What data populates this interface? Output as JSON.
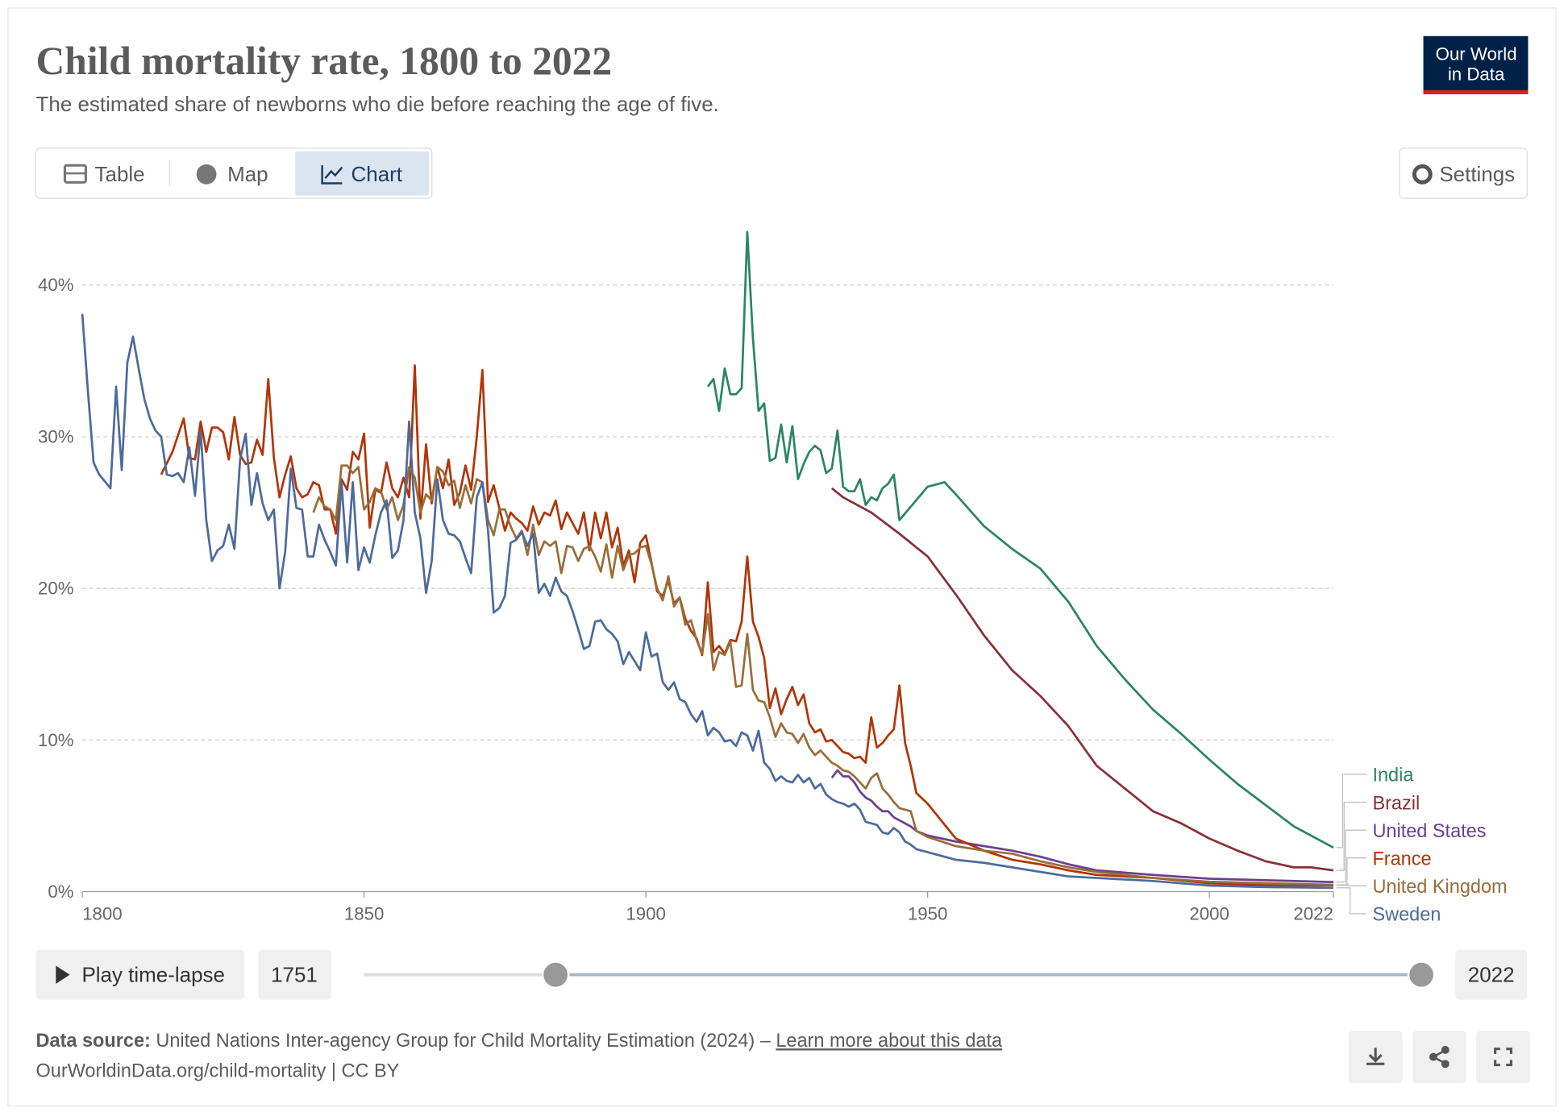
{
  "header": {
    "title": "Child mortality rate, 1800 to 2022",
    "subtitle": "The estimated share of newborns who die before reaching the age of five.",
    "logo": [
      "Our World",
      "in Data"
    ]
  },
  "tabs": [
    "Table",
    "Map",
    "Chart"
  ],
  "settings": "Settings",
  "timeline": {
    "play": "Play time-lapse",
    "start": "1751",
    "end": "2022"
  },
  "footer": {
    "source_label": "Data source:",
    "source": "United Nations Inter-agency Group for Child Mortality Estimation (2024) – ",
    "link": "Learn more about this data",
    "url": "OurWorldinData.org/child-mortality | CC BY"
  },
  "chart_data": {
    "type": "line",
    "xlim": [
      1800,
      2022
    ],
    "xticks": [
      1800,
      1850,
      1900,
      1950,
      2000,
      2022
    ],
    "ylim": [
      0,
      44
    ],
    "yticks": [
      {
        "value": 0,
        "label": "0%"
      },
      {
        "value": 10,
        "label": "10%"
      },
      {
        "value": 20,
        "label": "20%"
      },
      {
        "value": 30,
        "label": "30%"
      },
      {
        "value": 40,
        "label": "40%"
      }
    ],
    "grid": true,
    "series": [
      {
        "name": "India",
        "color": "#2c8465",
        "x": [
          1911,
          1912,
          1913,
          1914,
          1915,
          1916,
          1917,
          1918,
          1919,
          1920,
          1921,
          1922,
          1923,
          1924,
          1925,
          1926,
          1927,
          1928,
          1929,
          1930,
          1931,
          1932,
          1933,
          1934,
          1935,
          1936,
          1937,
          1938,
          1939,
          1940,
          1941,
          1942,
          1943,
          1944,
          1945,
          1950,
          1953,
          1955,
          1960,
          1965,
          1970,
          1975,
          1980,
          1985,
          1990,
          1995,
          2000,
          2005,
          2010,
          2015,
          2022
        ],
        "values": [
          33.3,
          33.8,
          31.7,
          34.5,
          32.8,
          32.8,
          33.2,
          43.5,
          36.5,
          31.7,
          32.2,
          28.4,
          28.6,
          30.8,
          28.3,
          30.7,
          27.2,
          28.2,
          29,
          29.4,
          29.1,
          27.6,
          27.9,
          30.4,
          26.7,
          26.4,
          26.4,
          27.2,
          25.5,
          26,
          25.8,
          26.6,
          26.9,
          27.5,
          24.5,
          26.7,
          27,
          26.2,
          24.1,
          22.6,
          21.3,
          19.1,
          16.2,
          14.0,
          12,
          10.4,
          8.7,
          7.1,
          5.7,
          4.3,
          2.9
        ]
      },
      {
        "name": "Brazil",
        "color": "#883039",
        "x": [
          1933,
          1935,
          1940,
          1945,
          1950,
          1955,
          1960,
          1965,
          1970,
          1975,
          1980,
          1985,
          1990,
          1995,
          2000,
          2005,
          2010,
          2015,
          2018,
          2022
        ],
        "values": [
          26.6,
          26.0,
          25.0,
          23.6,
          22.1,
          19.6,
          16.9,
          14.6,
          12.9,
          10.9,
          8.3,
          6.8,
          5.3,
          4.5,
          3.5,
          2.7,
          2.0,
          1.6,
          1.6,
          1.4
        ]
      },
      {
        "name": "United States",
        "color": "#6d3e91",
        "x": [
          1933,
          1934,
          1935,
          1936,
          1937,
          1938,
          1939,
          1940,
          1941,
          1942,
          1943,
          1944,
          1945,
          1946,
          1947,
          1948,
          1950,
          1955,
          1960,
          1965,
          1970,
          1975,
          1980,
          1990,
          2000,
          2010,
          2022
        ],
        "values": [
          7.5,
          8,
          7.6,
          7.6,
          7.2,
          6.6,
          6.2,
          6,
          5.6,
          5.3,
          5.3,
          4.9,
          4.7,
          4.5,
          4.3,
          4,
          3.7,
          3.3,
          3.0,
          2.7,
          2.3,
          1.8,
          1.4,
          1.1,
          0.85,
          0.75,
          0.63
        ]
      },
      {
        "name": "France",
        "color": "#b13507",
        "x": [
          1814,
          1816,
          1818,
          1819,
          1820,
          1821,
          1822,
          1823,
          1824,
          1825,
          1826,
          1827,
          1828,
          1829,
          1830,
          1831,
          1832,
          1833,
          1834,
          1835,
          1836,
          1837,
          1838,
          1839,
          1840,
          1841,
          1842,
          1843,
          1844,
          1845,
          1846,
          1847,
          1848,
          1849,
          1850,
          1851,
          1852,
          1853,
          1854,
          1855,
          1856,
          1857,
          1858,
          1859,
          1860,
          1861,
          1862,
          1863,
          1864,
          1865,
          1866,
          1867,
          1868,
          1869,
          1870,
          1871,
          1872,
          1873,
          1874,
          1875,
          1876,
          1877,
          1878,
          1879,
          1880,
          1881,
          1882,
          1883,
          1884,
          1885,
          1886,
          1887,
          1888,
          1889,
          1890,
          1891,
          1892,
          1893,
          1894,
          1895,
          1896,
          1897,
          1898,
          1899,
          1900,
          1901,
          1902,
          1903,
          1904,
          1905,
          1906,
          1907,
          1908,
          1909,
          1910,
          1911,
          1912,
          1913,
          1914,
          1915,
          1916,
          1917,
          1918,
          1919,
          1920,
          1921,
          1922,
          1923,
          1924,
          1925,
          1926,
          1927,
          1928,
          1929,
          1930,
          1931,
          1932,
          1933,
          1934,
          1935,
          1936,
          1937,
          1938,
          1939,
          1940,
          1941,
          1942,
          1943,
          1944,
          1945,
          1946,
          1947,
          1948,
          1950,
          1955,
          1960,
          1965,
          1970,
          1975,
          1980,
          1990,
          2000,
          2010,
          2022
        ],
        "values": [
          27.5,
          29,
          31.2,
          28.6,
          28.5,
          31,
          29,
          30.6,
          30.6,
          30.3,
          28.5,
          31.3,
          28.8,
          28.2,
          28.3,
          29.8,
          28.8,
          33.8,
          28.6,
          26,
          27.5,
          28.7,
          26.6,
          26,
          26.2,
          27,
          26.8,
          25.2,
          25.2,
          23.6,
          27.2,
          26.5,
          29,
          28.5,
          30.2,
          24,
          26.5,
          26.3,
          28.3,
          26.6,
          26,
          27.3,
          26,
          34.7,
          24.6,
          29.5,
          25.6,
          28,
          26.6,
          28.5,
          25.5,
          26.3,
          28.1,
          26.5,
          30,
          34.4,
          25.7,
          26.8,
          25.3,
          23.8,
          25,
          24.6,
          24.3,
          23.8,
          25.4,
          24.2,
          25,
          24.8,
          25.8,
          23.9,
          25,
          24.3,
          23.6,
          25,
          22.5,
          25,
          23.3,
          25,
          22.7,
          24,
          21.5,
          22.5,
          20.4,
          23,
          23.5,
          21.7,
          19.8,
          19.5,
          20.5,
          19,
          19.4,
          18,
          17.2,
          16.7,
          15.6,
          20.4,
          15.8,
          16.2,
          15.7,
          16.6,
          16.5,
          17.8,
          22.1,
          17.8,
          16.8,
          15.4,
          12.1,
          13.4,
          11.7,
          12.7,
          13.5,
          12.3,
          13,
          11.1,
          10.5,
          10.7,
          9.9,
          10,
          9.6,
          9.2,
          9.1,
          8.8,
          8.9,
          8.5,
          11.5,
          9.5,
          9.8,
          10.3,
          10.7,
          13.6,
          9.8,
          8.3,
          6.5,
          5.8,
          3.5,
          2.7,
          2.1,
          1.8,
          1.4,
          1.1,
          0.9,
          0.55,
          0.42,
          0.42
        ]
      },
      {
        "name": "United Kingdom",
        "color": "#996d39",
        "x": [
          1841,
          1842,
          1843,
          1844,
          1845,
          1846,
          1847,
          1848,
          1849,
          1850,
          1851,
          1852,
          1853,
          1854,
          1855,
          1856,
          1857,
          1858,
          1859,
          1860,
          1861,
          1862,
          1863,
          1864,
          1865,
          1866,
          1867,
          1868,
          1869,
          1870,
          1871,
          1872,
          1873,
          1874,
          1875,
          1876,
          1877,
          1878,
          1879,
          1880,
          1881,
          1882,
          1883,
          1884,
          1885,
          1886,
          1887,
          1888,
          1889,
          1890,
          1891,
          1892,
          1893,
          1894,
          1895,
          1896,
          1897,
          1898,
          1899,
          1900,
          1901,
          1902,
          1903,
          1904,
          1905,
          1906,
          1907,
          1908,
          1909,
          1910,
          1911,
          1912,
          1913,
          1914,
          1915,
          1916,
          1917,
          1918,
          1919,
          1920,
          1921,
          1922,
          1923,
          1924,
          1925,
          1926,
          1927,
          1928,
          1929,
          1930,
          1931,
          1932,
          1933,
          1934,
          1935,
          1936,
          1937,
          1938,
          1939,
          1940,
          1941,
          1942,
          1943,
          1944,
          1945,
          1946,
          1947,
          1948,
          1950,
          1955,
          1960,
          1965,
          1970,
          1975,
          1980,
          1990,
          2000,
          2010,
          2022
        ],
        "values": [
          25,
          26,
          25.4,
          25.2,
          24.5,
          28.1,
          28.1,
          27.6,
          28,
          25.2,
          25.7,
          26.6,
          26.4,
          25.2,
          26,
          24.5,
          25.5,
          28,
          27.3,
          25,
          26.2,
          25.8,
          28,
          27.7,
          26.8,
          27.1,
          25.3,
          26.8,
          25.6,
          27.2,
          27,
          24.5,
          23.5,
          25.2,
          25.2,
          24.1,
          23.3,
          23.8,
          22.2,
          24.2,
          22.2,
          23.1,
          22.8,
          23.1,
          21,
          22.8,
          22.7,
          21.8,
          22.6,
          22.8,
          22.1,
          21.1,
          22.9,
          20.7,
          22.8,
          21.2,
          22.2,
          22.3,
          22.7,
          22.8,
          21.6,
          20,
          19.2,
          20.8,
          18.8,
          19.4,
          17.6,
          17.9,
          16.6,
          15.7,
          18.3,
          14.6,
          15.8,
          15.6,
          16.5,
          13.5,
          13.6,
          17,
          13.3,
          12.6,
          12.5,
          11.5,
          10.2,
          11.1,
          10.5,
          10.4,
          9.8,
          10.4,
          9.5,
          9,
          9.3,
          8.9,
          8.5,
          8.3,
          8,
          7.9,
          7.6,
          7.2,
          6.8,
          7.5,
          7.8,
          6.8,
          6.4,
          5.9,
          5.5,
          5.4,
          5.3,
          4,
          3.6,
          3,
          2.7,
          2.5,
          2.0,
          1.6,
          1.3,
          0.9,
          0.65,
          0.55,
          0.45
        ]
      },
      {
        "name": "Sweden",
        "color": "#4c6a9c",
        "x": [
          1800,
          1801,
          1802,
          1803,
          1805,
          1806,
          1807,
          1808,
          1809,
          1810,
          1811,
          1812,
          1813,
          1814,
          1815,
          1816,
          1817,
          1818,
          1819,
          1820,
          1821,
          1822,
          1823,
          1824,
          1825,
          1826,
          1827,
          1828,
          1829,
          1830,
          1831,
          1832,
          1833,
          1834,
          1835,
          1836,
          1837,
          1838,
          1839,
          1840,
          1841,
          1842,
          1843,
          1844,
          1845,
          1846,
          1847,
          1848,
          1849,
          1850,
          1851,
          1852,
          1853,
          1854,
          1855,
          1856,
          1857,
          1858,
          1859,
          1860,
          1861,
          1862,
          1863,
          1864,
          1865,
          1866,
          1867,
          1868,
          1869,
          1870,
          1871,
          1872,
          1873,
          1874,
          1875,
          1876,
          1877,
          1878,
          1879,
          1880,
          1881,
          1882,
          1883,
          1884,
          1885,
          1886,
          1887,
          1888,
          1889,
          1890,
          1891,
          1892,
          1893,
          1894,
          1895,
          1896,
          1897,
          1898,
          1899,
          1900,
          1901,
          1902,
          1903,
          1904,
          1905,
          1906,
          1907,
          1908,
          1909,
          1910,
          1911,
          1912,
          1913,
          1914,
          1915,
          1916,
          1917,
          1918,
          1919,
          1920,
          1921,
          1922,
          1923,
          1924,
          1925,
          1926,
          1927,
          1928,
          1929,
          1930,
          1931,
          1932,
          1933,
          1934,
          1935,
          1936,
          1937,
          1938,
          1939,
          1940,
          1941,
          1942,
          1943,
          1944,
          1945,
          1946,
          1947,
          1948,
          1950,
          1955,
          1960,
          1965,
          1970,
          1975,
          1980,
          1990,
          2000,
          2010,
          2022
        ],
        "values": [
          38.1,
          33,
          28.3,
          27.5,
          26.6,
          33.3,
          27.8,
          34.9,
          36.6,
          34.5,
          32.5,
          31.2,
          30.4,
          30,
          27.5,
          27.4,
          27.6,
          27,
          29.3,
          26.1,
          30.4,
          24.5,
          21.8,
          22.5,
          22.8,
          24.2,
          22.6,
          28.5,
          30.2,
          25.5,
          27.6,
          25.6,
          24.5,
          25.2,
          20,
          22.4,
          27.9,
          25.3,
          25.2,
          22.1,
          22.1,
          24.2,
          23.2,
          22.4,
          21.5,
          27,
          21.7,
          27,
          21.2,
          22.7,
          21.7,
          23.5,
          25,
          25.8,
          22,
          22.5,
          24.5,
          31,
          25,
          23.3,
          19.7,
          21.8,
          27.2,
          24.5,
          23.6,
          23.5,
          23.1,
          22,
          21,
          26,
          27,
          23.8,
          18.4,
          18.7,
          19.5,
          23,
          23.2,
          23.7,
          22.8,
          23.6,
          19.7,
          20.3,
          19.5,
          20.7,
          19.8,
          19.5,
          18.5,
          17.3,
          16,
          16.2,
          17.8,
          17.9,
          17.3,
          17,
          16.5,
          15,
          15.8,
          15.2,
          14.6,
          17.1,
          15.5,
          15.7,
          13.8,
          13.3,
          13.8,
          12.7,
          12.5,
          11.7,
          11.2,
          11.9,
          10.3,
          10.8,
          10.5,
          9.9,
          10,
          9.6,
          10.5,
          10.3,
          9.3,
          10.6,
          8.5,
          8.1,
          7.3,
          7.6,
          7.3,
          7.2,
          7.7,
          7.2,
          7.5,
          6.8,
          7.1,
          6.4,
          6.1,
          5.9,
          5.8,
          5.6,
          5.8,
          5.4,
          4.6,
          4.5,
          4.4,
          3.9,
          3.8,
          4.2,
          3.9,
          3.3,
          3.1,
          2.8,
          2.6,
          2.1,
          1.9,
          1.6,
          1.3,
          1.0,
          0.9,
          0.7,
          0.4,
          0.3,
          0.25
        ]
      }
    ]
  }
}
